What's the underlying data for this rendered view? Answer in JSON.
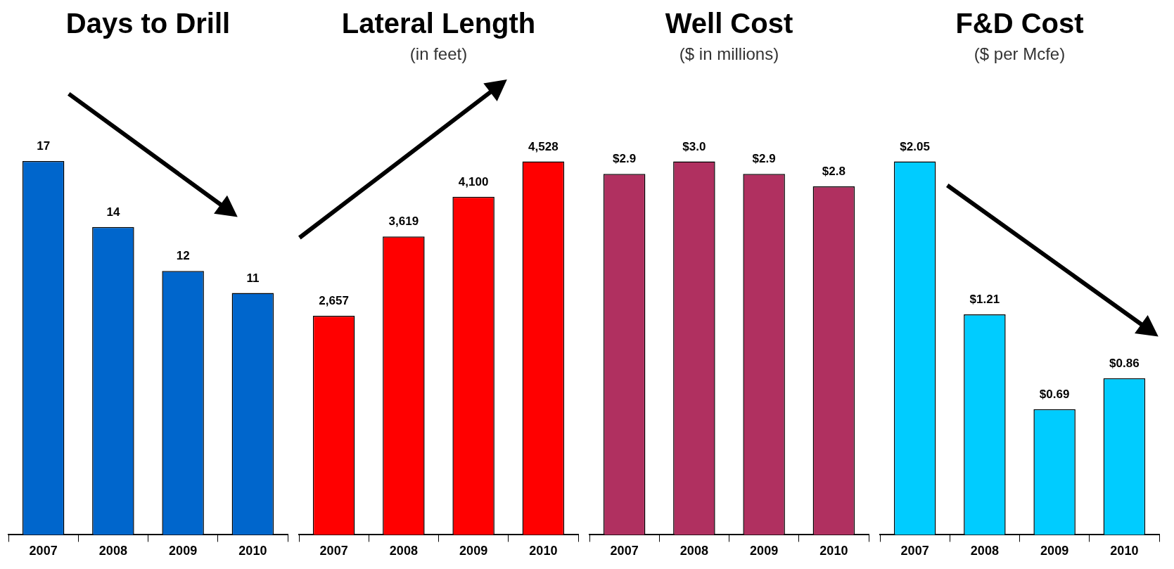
{
  "chart_data": [
    {
      "type": "bar",
      "title": "Days to Drill",
      "categories": [
        "2007",
        "2008",
        "2009",
        "2010"
      ],
      "values": [
        17,
        14,
        12,
        11
      ],
      "color": "#0066cc",
      "data_labels": true
    },
    {
      "type": "bar",
      "title": "Lateral Length",
      "subtitle": "(in feet)",
      "categories": [
        "2007",
        "2008",
        "2009",
        "2010"
      ],
      "values": [
        2657,
        3619,
        4100,
        4528
      ],
      "value_labels": [
        "2,657",
        "3,619",
        "4,100",
        "4,528"
      ],
      "color": "#ff0000"
    },
    {
      "type": "bar",
      "title": "Well Cost",
      "subtitle": "($ in millions)",
      "categories": [
        "2007",
        "2008",
        "2009",
        "2010"
      ],
      "values": [
        2.9,
        3.0,
        2.9,
        2.8
      ],
      "value_labels": [
        "$2.9",
        "$3.0",
        "$2.9",
        "$2.8"
      ],
      "color": "#b03060"
    },
    {
      "type": "bar",
      "title": "F&D Cost",
      "subtitle": "($ per Mcfe)",
      "categories": [
        "2007",
        "2008",
        "2009",
        "2010"
      ],
      "values": [
        2.05,
        1.21,
        0.69,
        0.86
      ],
      "value_labels": [
        "$2.05",
        "$1.21",
        "$0.69",
        "$0.86"
      ],
      "color": "#00ccff"
    }
  ]
}
